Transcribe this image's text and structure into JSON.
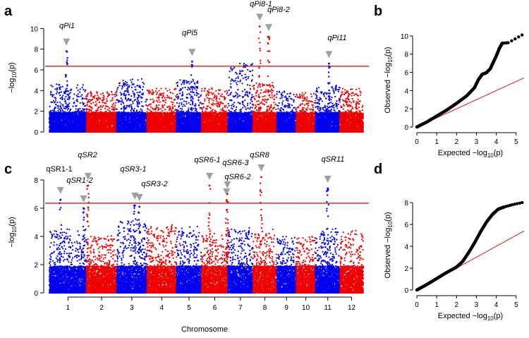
{
  "colors": {
    "blue": "#0000ee",
    "red": "#ee0000",
    "threshold": "#e00000",
    "qq_line": "#d32020",
    "qq_points": "#000000",
    "triangle": "#a0a0a0"
  },
  "x_label": "Chromosome",
  "chart_data": [
    {
      "panel": "a",
      "type": "scatter",
      "subtype": "manhattan",
      "ylabel": "−log10(p)",
      "ylim": [
        0,
        10.5
      ],
      "yticks": [
        0,
        2,
        4,
        6,
        8,
        10
      ],
      "threshold": 6.35,
      "chromosomes": [
        "1",
        "2",
        "3",
        "4",
        "5",
        "6",
        "7",
        "8",
        "9",
        "10",
        "11",
        "12"
      ],
      "baseline_max": [
        4.4,
        3.8,
        4.9,
        4.0,
        4.9,
        4.1,
        6.3,
        4.6,
        3.8,
        3.6,
        4.3,
        4.0
      ],
      "peaks": [
        {
          "label": "qPi1",
          "chr": 1,
          "pos": 0.46,
          "value": 7.8
        },
        {
          "label": "qPi5",
          "chr": 5,
          "pos": 0.62,
          "value": 6.8
        },
        {
          "label": "qPi8-1",
          "chr": 8,
          "pos": 0.28,
          "value": 10.2
        },
        {
          "label": "qPi8-2",
          "chr": 8,
          "pos": 0.66,
          "value": 9.2
        },
        {
          "label": "qPi11",
          "chr": 11,
          "pos": 0.55,
          "value": 6.6
        }
      ]
    },
    {
      "panel": "b",
      "type": "scatter",
      "subtype": "qq",
      "xlabel": "Expected −log10(p)",
      "ylabel": "Observed −log10(p)",
      "xlim": [
        0,
        5.4
      ],
      "ylim": [
        0,
        10.3
      ],
      "xticks": [
        0,
        1,
        2,
        3,
        4,
        5
      ],
      "yticks": [
        0,
        2,
        4,
        6,
        8,
        10
      ],
      "diagonal": [
        [
          0,
          0
        ],
        [
          5.4,
          5.4
        ]
      ],
      "curve": [
        [
          0,
          0
        ],
        [
          0.5,
          0.55
        ],
        [
          1,
          1.2
        ],
        [
          1.5,
          1.85
        ],
        [
          2,
          2.6
        ],
        [
          2.5,
          3.4
        ],
        [
          2.9,
          4.3
        ],
        [
          3.1,
          5.2
        ],
        [
          3.3,
          5.8
        ],
        [
          3.5,
          5.95
        ],
        [
          3.7,
          6.4
        ],
        [
          3.85,
          7.1
        ],
        [
          4.0,
          7.8
        ],
        [
          4.15,
          8.6
        ],
        [
          4.3,
          9.2
        ],
        [
          4.6,
          9.25
        ],
        [
          5.3,
          10.1
        ]
      ]
    },
    {
      "panel": "c",
      "type": "scatter",
      "subtype": "manhattan",
      "ylabel": "−log10(p)",
      "ylim": [
        0,
        8.6
      ],
      "yticks": [
        0,
        2,
        4,
        6,
        8
      ],
      "threshold": 6.35,
      "chromosomes": [
        "1",
        "2",
        "3",
        "4",
        "5",
        "6",
        "7",
        "8",
        "9",
        "10",
        "11",
        "12"
      ],
      "baseline_max": [
        4.3,
        3.9,
        4.9,
        4.6,
        4.5,
        4.0,
        4.4,
        4.3,
        3.8,
        3.9,
        4.4,
        4.2
      ],
      "peaks": [
        {
          "label": "qSR1-1",
          "chr": 1,
          "pos": 0.3,
          "value": 6.6
        },
        {
          "label": "qSR1-2",
          "chr": 1,
          "pos": 0.92,
          "value": 6.0
        },
        {
          "label": "qSR2",
          "chr": 2,
          "pos": 0.05,
          "value": 7.6
        },
        {
          "label": "qSR3-1",
          "chr": 3,
          "pos": 0.6,
          "value": 6.2
        },
        {
          "label": "qSR3-2",
          "chr": 3,
          "pos": 0.75,
          "value": 6.1
        },
        {
          "label": "qSR6-1",
          "chr": 6,
          "pos": 0.3,
          "value": 7.6
        },
        {
          "label": "qSR6-2",
          "chr": 6,
          "pos": 0.95,
          "value": 6.5
        },
        {
          "label": "qSR6-3",
          "chr": 6,
          "pos": 0.98,
          "value": 7.0
        },
        {
          "label": "qSR8",
          "chr": 8,
          "pos": 0.35,
          "value": 8.2
        },
        {
          "label": "qSR11",
          "chr": 11,
          "pos": 0.5,
          "value": 7.4
        }
      ]
    },
    {
      "panel": "d",
      "type": "scatter",
      "subtype": "qq",
      "xlabel": "Expected −log10(p)",
      "ylabel": "Observed −log10(p)",
      "xlim": [
        0,
        5.4
      ],
      "ylim": [
        0,
        8.2
      ],
      "xticks": [
        0,
        1,
        2,
        3,
        4,
        5
      ],
      "yticks": [
        0,
        2,
        4,
        6,
        8
      ],
      "diagonal": [
        [
          0,
          0
        ],
        [
          5.4,
          5.4
        ]
      ],
      "curve": [
        [
          0,
          0
        ],
        [
          0.5,
          0.5
        ],
        [
          1,
          1.05
        ],
        [
          1.5,
          1.6
        ],
        [
          2,
          2.1
        ],
        [
          2.3,
          2.6
        ],
        [
          2.6,
          3.4
        ],
        [
          2.9,
          4.3
        ],
        [
          3.2,
          5.3
        ],
        [
          3.5,
          6.2
        ],
        [
          3.8,
          6.9
        ],
        [
          4.1,
          7.4
        ],
        [
          4.4,
          7.6
        ],
        [
          4.8,
          7.8
        ],
        [
          5.3,
          8.0
        ]
      ]
    }
  ]
}
